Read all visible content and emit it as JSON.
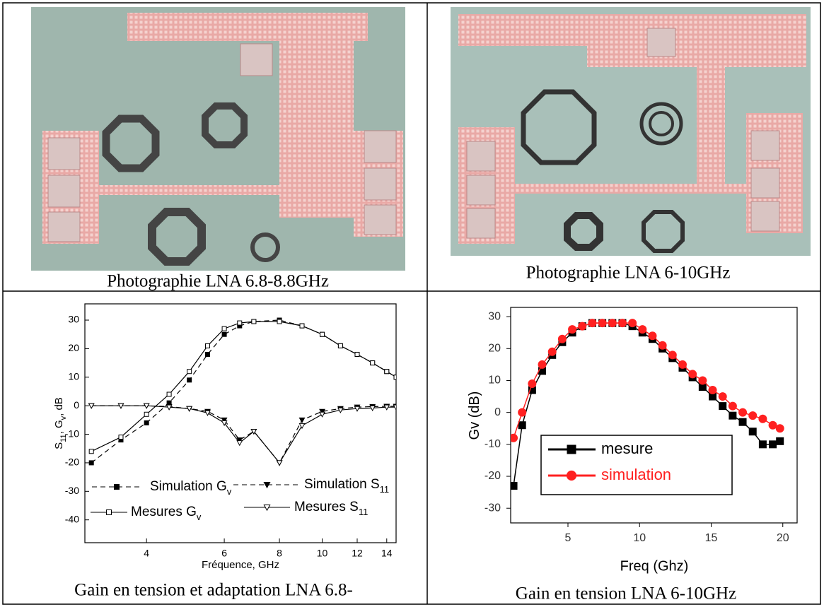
{
  "captions": [
    "Photographie LNA 6.8-8.8GHz",
    "Photographie LNA 6-10GHz",
    "Gain en tension et adaptation LNA 6.8-",
    "Gain en tension LNA 6-10GHz"
  ],
  "chart_data": [
    {
      "type": "line",
      "xlabel": "Fréquence, GHz",
      "ylabel": [
        "S",
        "11",
        ", G",
        "v",
        ", dB"
      ],
      "log_x": true,
      "xlim": [
        2.9,
        14.7
      ],
      "ylim": [
        -48,
        35.7
      ],
      "xticks": [
        4,
        6,
        8,
        10,
        12,
        14
      ],
      "yticks": [
        30,
        20,
        10,
        0,
        -10,
        -20,
        -30,
        -40
      ],
      "x": [
        3,
        3.5,
        4,
        4.5,
        5,
        5.5,
        6,
        6.5,
        7,
        8,
        9,
        10,
        11,
        12,
        13,
        14,
        14.7
      ],
      "series": [
        {
          "name": [
            "Simulation G",
            "v"
          ],
          "color": "#000000",
          "dash": true,
          "marker": "square",
          "filled": true,
          "values": [
            -20,
            -12,
            -6,
            1,
            9,
            18,
            25,
            28,
            29.5,
            30,
            28,
            25,
            21,
            18,
            15,
            12,
            10
          ]
        },
        {
          "name": [
            "Simulation S",
            "11"
          ],
          "color": "#000000",
          "dash": true,
          "marker": "triangle",
          "filled": true,
          "values": [
            0,
            0,
            0,
            -0.3,
            -1,
            -2,
            -5,
            -12,
            -9,
            -20,
            -5,
            -2,
            -1,
            -0.5,
            -0.3,
            -0.2,
            -0.2
          ]
        },
        {
          "name": [
            "Mesures G",
            "v"
          ],
          "color": "#000000",
          "dash": false,
          "marker": "square",
          "filled": false,
          "values": [
            -16,
            -11,
            -3,
            4,
            12,
            21,
            27,
            29,
            29.5,
            29.5,
            28,
            25,
            21,
            18,
            15,
            12,
            10
          ]
        },
        {
          "name": [
            "Mesures S",
            "11"
          ],
          "color": "#000000",
          "dash": false,
          "marker": "triangle",
          "filled": false,
          "values": [
            0,
            0,
            0,
            -0.5,
            -1,
            -2.5,
            -6,
            -13,
            -9,
            -20,
            -7,
            -3,
            -1.5,
            -1,
            -0.8,
            -0.5,
            -0.5
          ]
        }
      ]
    },
    {
      "type": "line",
      "xlabel": "Freq (Ghz)",
      "ylabel": [
        "Gv (dB)"
      ],
      "log_x": false,
      "xlim": [
        1,
        21
      ],
      "ylim": [
        -34.6,
        32.9
      ],
      "xticks": [
        5,
        10,
        15,
        20
      ],
      "yticks": [
        30,
        20,
        10,
        0,
        -10,
        -20,
        -30
      ],
      "x": [
        1.2,
        1.8,
        2.5,
        3.2,
        3.9,
        4.6,
        5.3,
        6.0,
        6.7,
        7.4,
        8.1,
        8.8,
        9.5,
        10.2,
        10.9,
        11.6,
        12.3,
        13.0,
        13.7,
        14.4,
        15.1,
        15.8,
        16.5,
        17.2,
        17.9,
        18.6,
        19.3,
        19.8
      ],
      "series": [
        {
          "name": [
            "mesure"
          ],
          "color": "#000000",
          "dash": false,
          "marker": "square",
          "filled": true,
          "values": [
            -23,
            -4,
            7,
            13,
            18,
            22,
            25,
            27,
            28,
            28,
            28,
            28,
            27,
            25,
            23,
            20,
            17,
            14,
            11,
            8,
            5,
            2,
            -1,
            -3,
            -6,
            -10,
            -10,
            -9
          ]
        },
        {
          "name": [
            "simulation"
          ],
          "color": "#ff2020",
          "dash": false,
          "marker": "circle",
          "filled": true,
          "values": [
            -8,
            0,
            9,
            15,
            19,
            23,
            26,
            27,
            28,
            28,
            28,
            28,
            28,
            26,
            24,
            21,
            18,
            15,
            12,
            10,
            7,
            5,
            2,
            0,
            -1,
            -2,
            -4,
            -5
          ]
        }
      ]
    }
  ]
}
